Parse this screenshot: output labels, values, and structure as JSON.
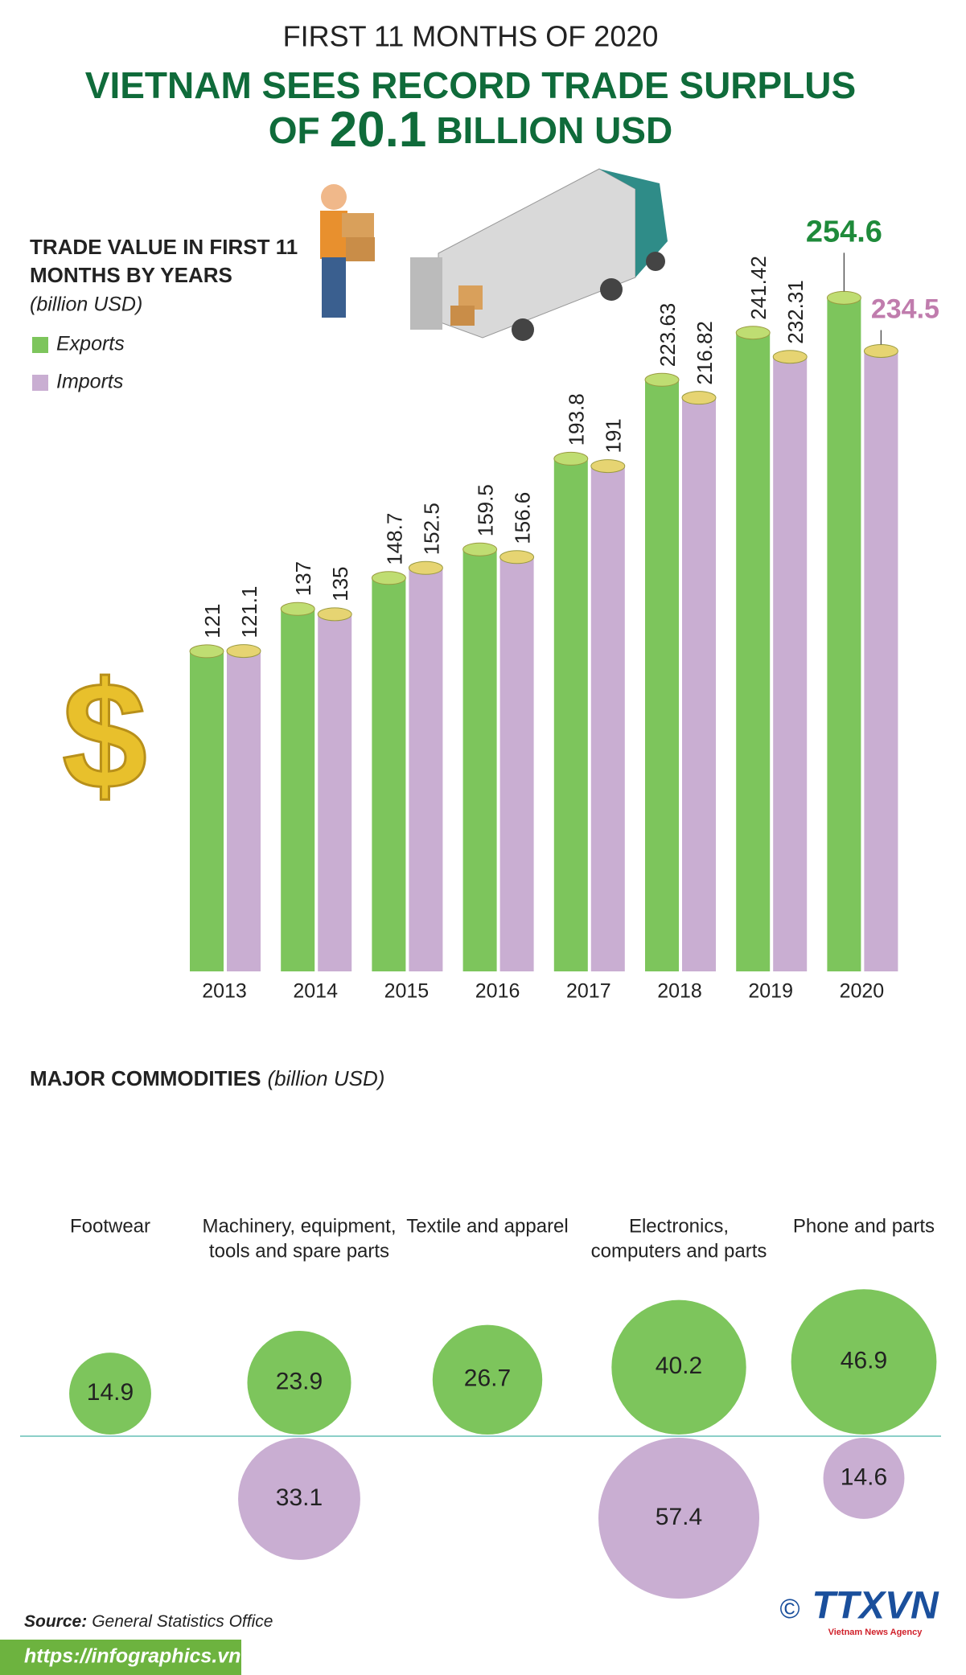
{
  "header": {
    "kicker": "FIRST 11 MONTHS OF 2020",
    "title_line1": "VIETNAM SEES RECORD TRADE SURPLUS",
    "title_of": "OF",
    "title_value": "20.1",
    "title_unit": "BILLION USD"
  },
  "chart_data": [
    {
      "type": "bar",
      "title_line1": "TRADE VALUE IN FIRST 11",
      "title_line2": "MONTHS BY YEARS",
      "subtitle": "(billion USD)",
      "categories": [
        "2013",
        "2014",
        "2015",
        "2016",
        "2017",
        "2018",
        "2019",
        "2020"
      ],
      "series": [
        {
          "name": "Exports",
          "color": "#7dc55c",
          "cap": "#bfdd72",
          "values": [
            121,
            137,
            148.7,
            159.5,
            193.8,
            223.63,
            241.42,
            254.6
          ]
        },
        {
          "name": "Imports",
          "color": "#c9aed2",
          "cap": "#e6d472",
          "values": [
            121.1,
            135,
            152.5,
            156.6,
            191,
            216.82,
            232.31,
            234.5
          ]
        }
      ]
    },
    {
      "type": "bubble",
      "title": "MAJOR COMMODITIES",
      "subtitle": "(billion USD)",
      "categories": [
        [
          "Footwear"
        ],
        [
          "Machinery, equipment,",
          "tools and spare parts"
        ],
        [
          "Textile and apparel"
        ],
        [
          "Electronics,",
          "computers and parts"
        ],
        [
          "Phone and parts"
        ]
      ],
      "series": [
        {
          "name": "Exports",
          "color": "#7dc55c",
          "values": [
            14.9,
            23.9,
            26.7,
            40.2,
            46.9
          ]
        },
        {
          "name": "Imports",
          "color": "#c9aed2",
          "values": [
            null,
            33.1,
            null,
            57.4,
            14.6
          ]
        }
      ]
    }
  ],
  "footer": {
    "source_label": "Source:",
    "source": "General Statistics Office",
    "url": "https://infographics.vn",
    "copyright": "©",
    "logo": "TTXVN",
    "logo_sub": "Vietnam News Agency"
  }
}
